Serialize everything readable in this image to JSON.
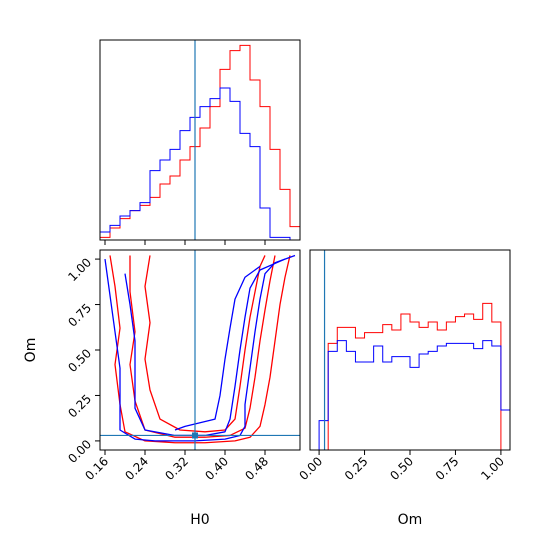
{
  "chart_data": [
    {
      "panel": "H0 marginal histogram",
      "type": "histogram",
      "xlim": [
        0.15,
        0.55
      ],
      "ylim": [
        0,
        150
      ],
      "y_ticks_visible": false,
      "x_tick_labels_visible": false,
      "reference_line_x": 0.34,
      "colors": {
        "red_series": "#ff0000",
        "blue_series": "#0000ff",
        "reference_line": "#1f77b4"
      },
      "bin_edges": [
        0.15,
        0.17,
        0.19,
        0.21,
        0.23,
        0.25,
        0.27,
        0.29,
        0.31,
        0.33,
        0.35,
        0.37,
        0.39,
        0.41,
        0.43,
        0.45,
        0.47,
        0.49,
        0.51,
        0.53,
        0.55
      ],
      "series": [
        {
          "color": "red",
          "values": [
            2,
            9,
            16,
            22,
            26,
            32,
            42,
            48,
            60,
            70,
            84,
            100,
            128,
            142,
            146,
            120,
            100,
            68,
            38,
            10
          ]
        },
        {
          "color": "blue",
          "values": [
            6,
            11,
            18,
            22,
            28,
            52,
            60,
            68,
            82,
            92,
            100,
            106,
            114,
            104,
            80,
            70,
            24,
            2,
            2,
            0
          ]
        }
      ]
    },
    {
      "panel": "H0 vs Om joint contours",
      "type": "contour",
      "xlabel": "H0",
      "ylabel": "Om",
      "xlim": [
        0.15,
        0.55
      ],
      "ylim": [
        -0.05,
        1.05
      ],
      "x_ticks": [
        "0.16",
        "0.24",
        "0.32",
        "0.40",
        "0.48"
      ],
      "y_ticks": [
        "0.00",
        "0.25",
        "0.50",
        "0.75",
        "1.00"
      ],
      "crosshair": {
        "x": 0.34,
        "y": 0.03
      },
      "series": [
        {
          "color": "red",
          "contours": [
            [
              [
                0.17,
                1.02
              ],
              [
                0.18,
                0.85
              ],
              [
                0.19,
                0.62
              ],
              [
                0.18,
                0.42
              ],
              [
                0.19,
                0.2
              ],
              [
                0.2,
                0.05
              ],
              [
                0.24,
                0.0
              ],
              [
                0.3,
                -0.01
              ],
              [
                0.36,
                -0.01
              ],
              [
                0.42,
                0.0
              ],
              [
                0.45,
                0.02
              ],
              [
                0.47,
                0.08
              ],
              [
                0.48,
                0.2
              ],
              [
                0.49,
                0.35
              ],
              [
                0.5,
                0.55
              ],
              [
                0.51,
                0.75
              ],
              [
                0.52,
                0.9
              ],
              [
                0.53,
                1.02
              ]
            ],
            [
              [
                0.21,
                1.02
              ],
              [
                0.21,
                0.82
              ],
              [
                0.22,
                0.6
              ],
              [
                0.21,
                0.42
              ],
              [
                0.22,
                0.22
              ],
              [
                0.24,
                0.06
              ],
              [
                0.3,
                0.02
              ],
              [
                0.36,
                0.02
              ],
              [
                0.41,
                0.03
              ],
              [
                0.44,
                0.07
              ],
              [
                0.45,
                0.18
              ],
              [
                0.46,
                0.35
              ],
              [
                0.47,
                0.55
              ],
              [
                0.48,
                0.72
              ],
              [
                0.49,
                0.88
              ],
              [
                0.5,
                1.02
              ]
            ],
            [
              [
                0.25,
                1.02
              ],
              [
                0.24,
                0.85
              ],
              [
                0.25,
                0.65
              ],
              [
                0.24,
                0.45
              ],
              [
                0.25,
                0.28
              ],
              [
                0.27,
                0.12
              ],
              [
                0.31,
                0.06
              ],
              [
                0.36,
                0.05
              ],
              [
                0.4,
                0.06
              ],
              [
                0.42,
                0.12
              ],
              [
                0.43,
                0.3
              ],
              [
                0.44,
                0.5
              ],
              [
                0.45,
                0.68
              ],
              [
                0.46,
                0.82
              ],
              [
                0.47,
                0.96
              ],
              [
                0.48,
                1.02
              ]
            ]
          ]
        },
        {
          "color": "blue",
          "contours": [
            [
              [
                0.16,
                1.0
              ],
              [
                0.17,
                0.8
              ],
              [
                0.18,
                0.6
              ],
              [
                0.19,
                0.4
              ],
              [
                0.19,
                0.2
              ],
              [
                0.19,
                0.06
              ],
              [
                0.22,
                0.01
              ],
              [
                0.26,
                0.0
              ],
              [
                0.34,
                0.0
              ],
              [
                0.4,
                0.01
              ],
              [
                0.43,
                0.03
              ],
              [
                0.44,
                0.08
              ],
              [
                0.44,
                0.2
              ],
              [
                0.45,
                0.4
              ],
              [
                0.46,
                0.6
              ],
              [
                0.47,
                0.78
              ],
              [
                0.48,
                0.92
              ],
              [
                0.5,
                0.98
              ],
              [
                0.54,
                1.02
              ]
            ],
            [
              [
                0.2,
                0.92
              ],
              [
                0.21,
                0.75
              ],
              [
                0.22,
                0.55
              ],
              [
                0.22,
                0.35
              ],
              [
                0.22,
                0.18
              ],
              [
                0.24,
                0.06
              ],
              [
                0.3,
                0.03
              ],
              [
                0.36,
                0.03
              ],
              [
                0.4,
                0.05
              ],
              [
                0.41,
                0.12
              ],
              [
                0.42,
                0.3
              ],
              [
                0.43,
                0.5
              ],
              [
                0.44,
                0.68
              ],
              [
                0.45,
                0.84
              ],
              [
                0.47,
                0.94
              ],
              [
                0.52,
                1.0
              ]
            ],
            [
              [
                0.3,
                0.06
              ],
              [
                0.32,
                0.08
              ],
              [
                0.35,
                0.1
              ],
              [
                0.38,
                0.12
              ],
              [
                0.39,
                0.25
              ],
              [
                0.4,
                0.45
              ],
              [
                0.41,
                0.62
              ],
              [
                0.42,
                0.78
              ],
              [
                0.44,
                0.9
              ],
              [
                0.47,
                0.96
              ]
            ]
          ]
        }
      ]
    },
    {
      "panel": "Om marginal histogram",
      "type": "histogram",
      "xlabel": "Om",
      "xlim": [
        -0.05,
        1.05
      ],
      "ylim": [
        0,
        150
      ],
      "x_ticks": [
        "0.00",
        "0.25",
        "0.50",
        "0.75",
        "1.00"
      ],
      "y_ticks_visible": false,
      "reference_line_x": 0.03,
      "bin_edges": [
        -0.05,
        0.0,
        0.05,
        0.1,
        0.15,
        0.2,
        0.25,
        0.3,
        0.35,
        0.4,
        0.45,
        0.5,
        0.55,
        0.6,
        0.65,
        0.7,
        0.75,
        0.8,
        0.85,
        0.9,
        0.95,
        1.0,
        1.05
      ],
      "series": [
        {
          "color": "red",
          "values": [
            0,
            0,
            80,
            92,
            92,
            84,
            88,
            88,
            94,
            90,
            102,
            96,
            92,
            96,
            90,
            96,
            100,
            102,
            98,
            110,
            96,
            0
          ]
        },
        {
          "color": "blue",
          "values": [
            0,
            22,
            74,
            82,
            74,
            66,
            66,
            78,
            66,
            70,
            70,
            62,
            72,
            74,
            78,
            80,
            80,
            80,
            76,
            82,
            78,
            30
          ]
        }
      ]
    }
  ]
}
